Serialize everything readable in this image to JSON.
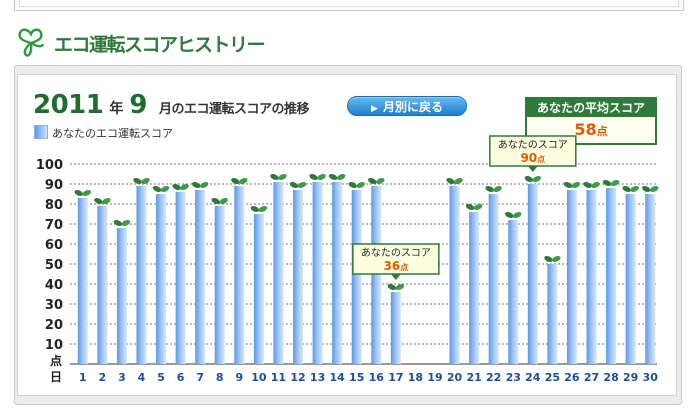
{
  "section": {
    "title": "エコ運転スコアヒストリー"
  },
  "header": {
    "year": "2011",
    "year_unit": "年",
    "month": "9",
    "month_rest": "月のエコ運転スコアの推移",
    "back_button": "月別に戻る"
  },
  "average": {
    "label": "あなたの平均スコア",
    "value": "58",
    "unit": "点"
  },
  "legend": {
    "label": "あなたのエコ運転スコア"
  },
  "colors": {
    "brand_green": "#2e7a3a",
    "bar_dark": "#5a9ae8",
    "bar_light": "#d6e6fb",
    "score_text": "#e05a00"
  },
  "chart_data": {
    "type": "bar",
    "categories": [
      "1",
      "2",
      "3",
      "4",
      "5",
      "6",
      "7",
      "8",
      "9",
      "10",
      "11",
      "12",
      "13",
      "14",
      "15",
      "16",
      "17",
      "18",
      "19",
      "20",
      "21",
      "22",
      "23",
      "24",
      "25",
      "26",
      "27",
      "28",
      "29",
      "30"
    ],
    "series": [
      {
        "name": "あなたのエコ運転スコア",
        "values": [
          83,
          79,
          68,
          89,
          85,
          86,
          87,
          79,
          89,
          75,
          91,
          87,
          91,
          91,
          87,
          89,
          36,
          null,
          null,
          89,
          76,
          85,
          72,
          90,
          50,
          87,
          87,
          88,
          85,
          85
        ]
      }
    ],
    "ylim": [
      0,
      100
    ],
    "yticks": [
      10,
      20,
      30,
      40,
      50,
      60,
      70,
      80,
      90,
      100
    ],
    "ylabel": "点",
    "xlabel": "日",
    "grid": true,
    "callouts": [
      {
        "label": "あなたのスコア",
        "value": "90",
        "unit": "点",
        "day": "24"
      },
      {
        "label": "あなたのスコア",
        "value": "36",
        "unit": "点",
        "day": "17"
      }
    ]
  }
}
